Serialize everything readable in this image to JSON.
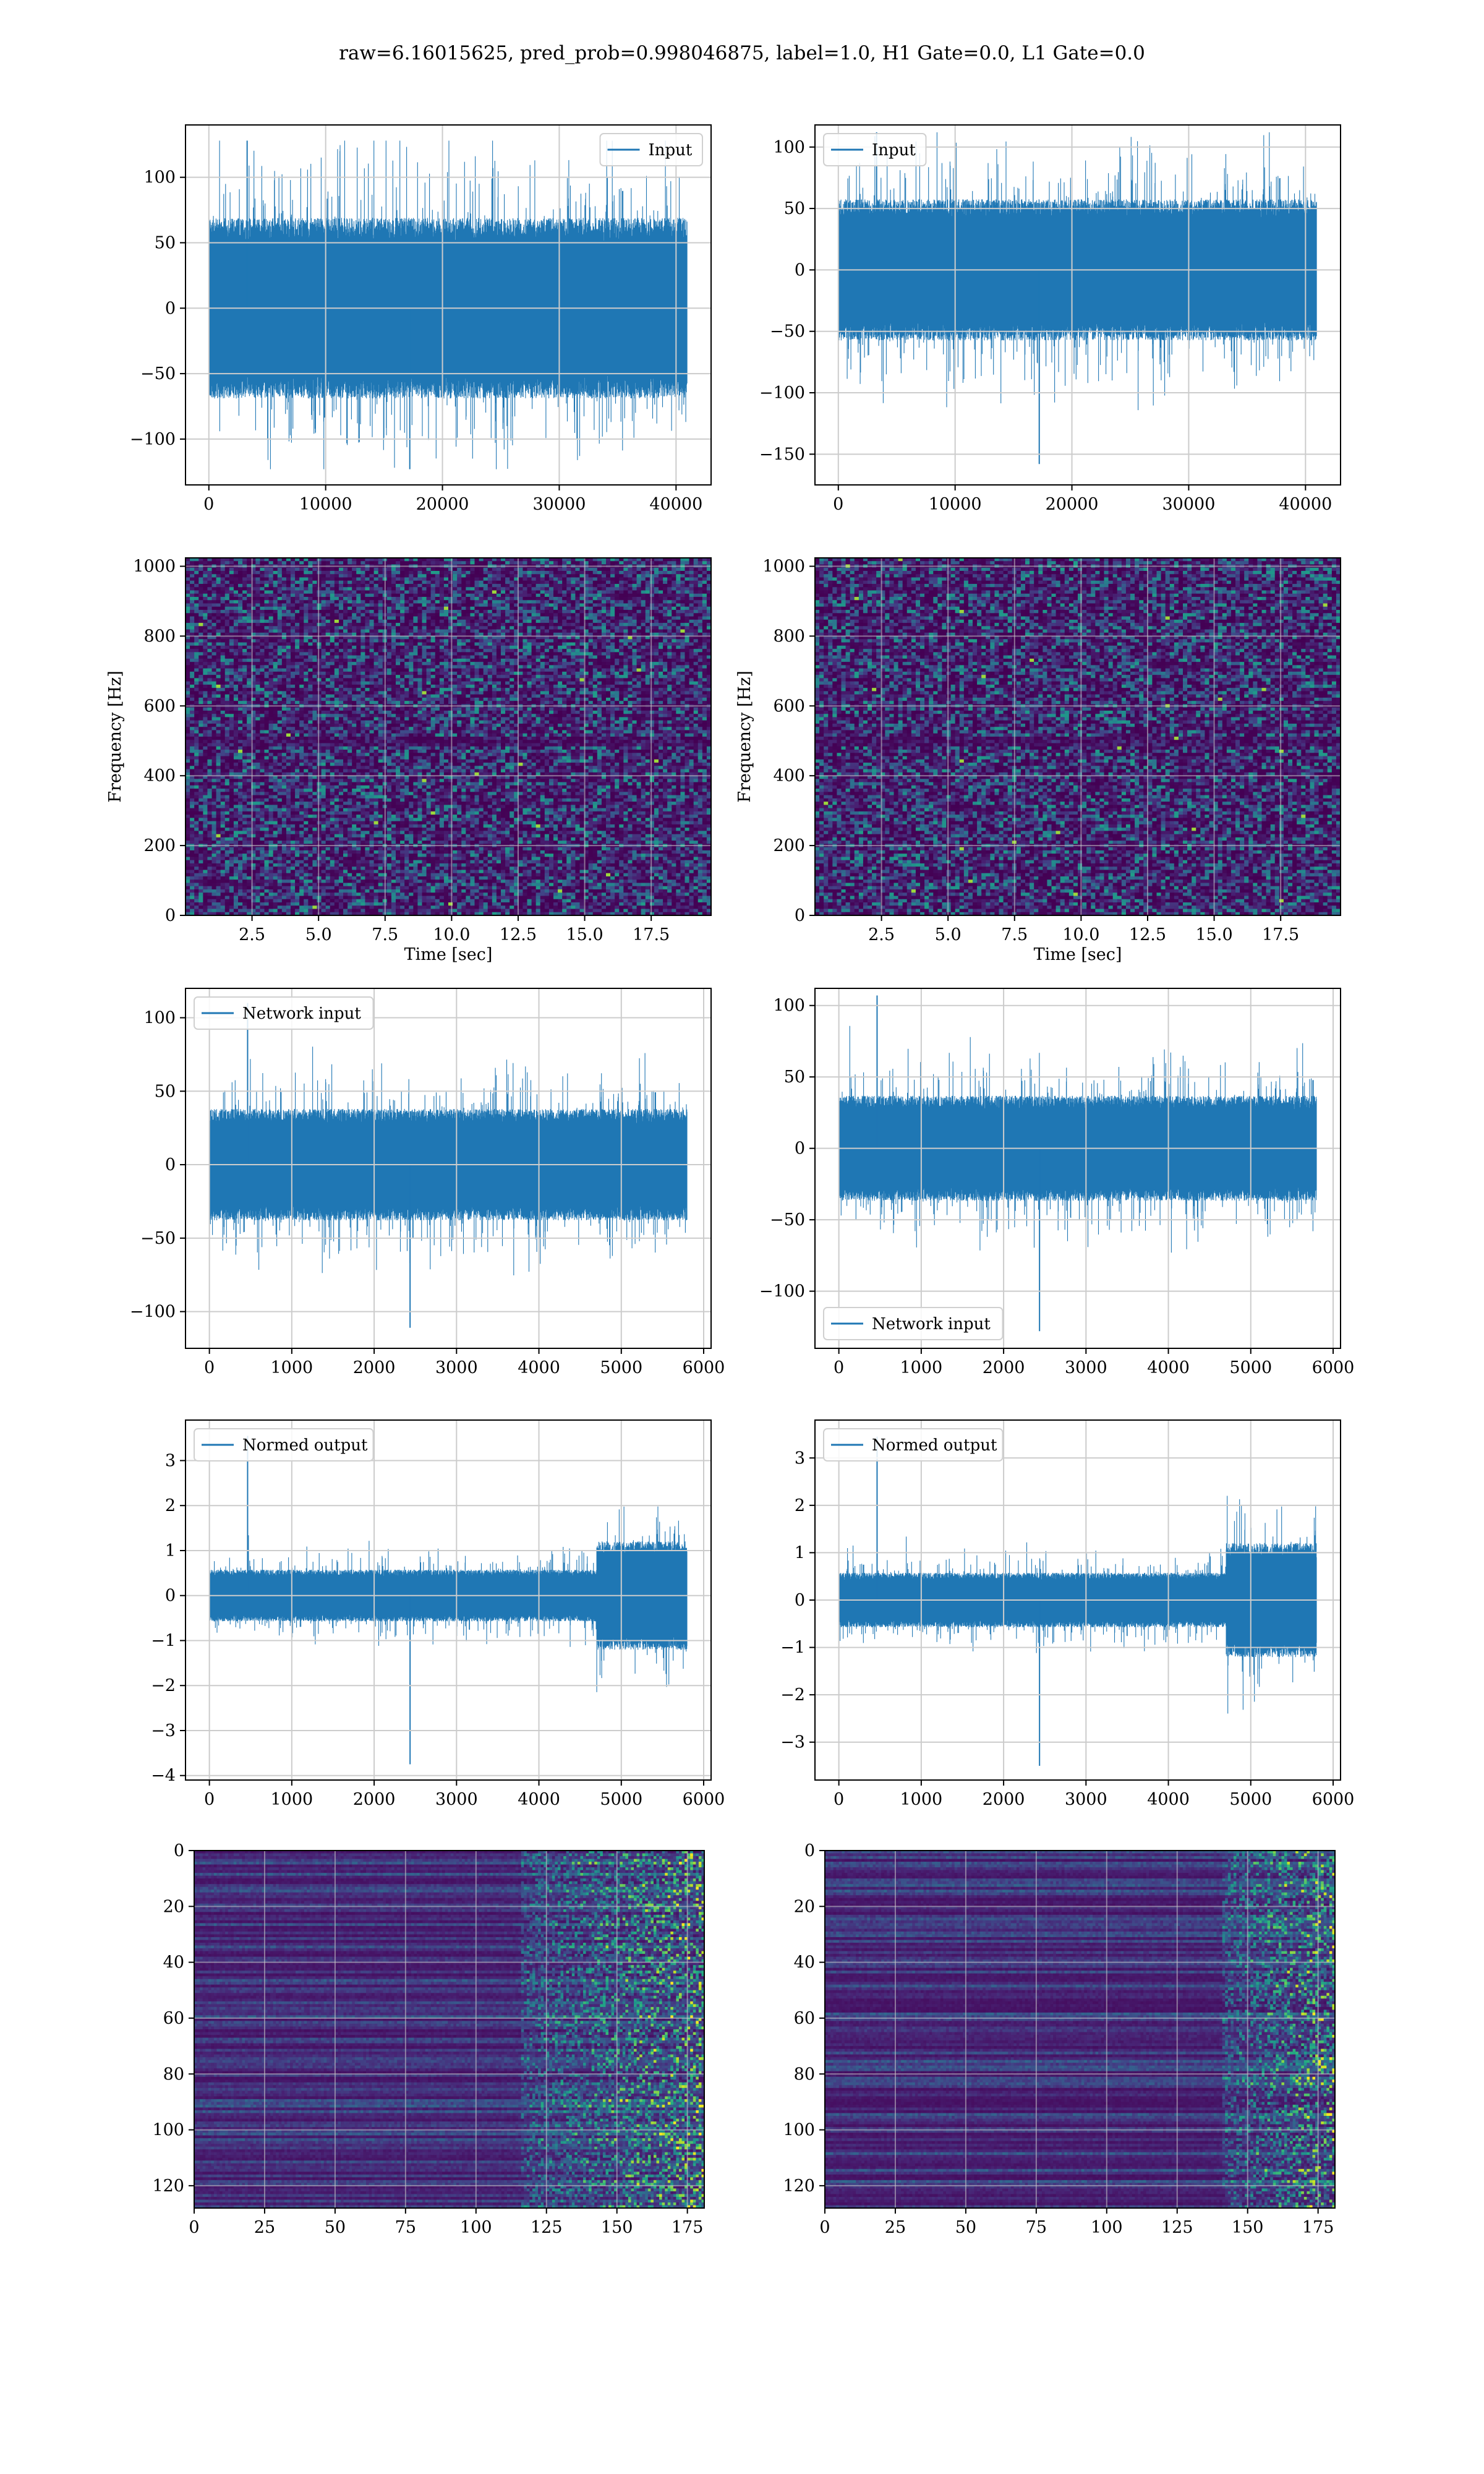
{
  "figure": {
    "title": "raw=6.16015625, pred_prob=0.998046875, label=1.0, H1 Gate=0.0, L1 Gate=0.0",
    "colors": {
      "series": "#1f77b4",
      "grid": "#cccccc",
      "axes": "#000000",
      "viridis": [
        "#440154",
        "#482475",
        "#414487",
        "#355f8d",
        "#2a788e",
        "#21918c",
        "#22a884",
        "#44bf70",
        "#7ad151",
        "#bddf26",
        "#fde725"
      ]
    }
  },
  "chart_data": [
    {
      "id": "input-h1",
      "type": "line",
      "legend": {
        "label": "Input",
        "placement": "upper right"
      },
      "xlim": [
        -2000,
        43000
      ],
      "ylim": [
        -135,
        140
      ],
      "xticks": [
        0,
        10000,
        20000,
        30000,
        40000
      ],
      "xticklabels": [
        "0",
        "10000",
        "20000",
        "30000",
        "40000"
      ],
      "yticks": [
        -100,
        -50,
        0,
        50,
        100
      ],
      "yticklabels": [
        "−100",
        "−50",
        "0",
        "50",
        "100"
      ],
      "grid": true,
      "x_range": [
        0,
        40960
      ],
      "envelope": {
        "core": 60,
        "peak": 128,
        "min": -123
      }
    },
    {
      "id": "input-l1",
      "type": "line",
      "legend": {
        "label": "Input",
        "placement": "upper left"
      },
      "xlim": [
        -2000,
        43000
      ],
      "ylim": [
        -175,
        118
      ],
      "xticks": [
        0,
        10000,
        20000,
        30000,
        40000
      ],
      "xticklabels": [
        "0",
        "10000",
        "20000",
        "30000",
        "40000"
      ],
      "yticks": [
        -150,
        -100,
        -50,
        0,
        50,
        100
      ],
      "yticklabels": [
        "−150",
        "−100",
        "−50",
        "0",
        "50",
        "100"
      ],
      "grid": true,
      "x_range": [
        0,
        40960
      ],
      "envelope": {
        "core": 50,
        "peak": 112,
        "min": -158
      }
    },
    {
      "id": "spectrogram-h1",
      "type": "heatmap",
      "xlabel": "Time [sec]",
      "ylabel": "Frequency [Hz]",
      "xlim": [
        0,
        19.75
      ],
      "ylim": [
        0,
        1024
      ],
      "xticks": [
        2.5,
        5.0,
        7.5,
        10.0,
        12.5,
        15.0,
        17.5
      ],
      "xticklabels": [
        "2.5",
        "5.0",
        "7.5",
        "10.0",
        "12.5",
        "15.0",
        "17.5"
      ],
      "yticks": [
        0,
        200,
        400,
        600,
        800,
        1000
      ],
      "yticklabels": [
        "0",
        "200",
        "400",
        "600",
        "800",
        "1000"
      ],
      "grid": true,
      "colormap": "viridis",
      "dark_band_hz": 500
    },
    {
      "id": "spectrogram-l1",
      "type": "heatmap",
      "xlabel": "Time [sec]",
      "ylabel": "Frequency [Hz]",
      "xlim": [
        0,
        19.75
      ],
      "ylim": [
        0,
        1024
      ],
      "xticks": [
        2.5,
        5.0,
        7.5,
        10.0,
        12.5,
        15.0,
        17.5
      ],
      "xticklabels": [
        "2.5",
        "5.0",
        "7.5",
        "10.0",
        "12.5",
        "15.0",
        "17.5"
      ],
      "yticks": [
        0,
        200,
        400,
        600,
        800,
        1000
      ],
      "yticklabels": [
        "0",
        "200",
        "400",
        "600",
        "800",
        "1000"
      ],
      "grid": true,
      "colormap": "viridis",
      "dark_band_hz": 500
    },
    {
      "id": "network-input-h1",
      "type": "line",
      "legend": {
        "label": "Network input",
        "placement": "upper left"
      },
      "xlim": [
        -290,
        6090
      ],
      "ylim": [
        -125,
        120
      ],
      "xticks": [
        0,
        1000,
        2000,
        3000,
        4000,
        5000,
        6000
      ],
      "xticklabels": [
        "0",
        "1000",
        "2000",
        "3000",
        "4000",
        "5000",
        "6000"
      ],
      "yticks": [
        -100,
        -50,
        0,
        50,
        100
      ],
      "yticklabels": [
        "−100",
        "−50",
        "0",
        "50",
        "100"
      ],
      "grid": true,
      "x_range": [
        0,
        5800
      ],
      "envelope": {
        "core": 33,
        "peak": 110,
        "min": -111
      }
    },
    {
      "id": "network-input-l1",
      "type": "line",
      "legend": {
        "label": "Network input",
        "placement": "lower left"
      },
      "xlim": [
        -290,
        6090
      ],
      "ylim": [
        -140,
        112
      ],
      "xticks": [
        0,
        1000,
        2000,
        3000,
        4000,
        5000,
        6000
      ],
      "xticklabels": [
        "0",
        "1000",
        "2000",
        "3000",
        "4000",
        "5000",
        "6000"
      ],
      "yticks": [
        -100,
        -50,
        0,
        50,
        100
      ],
      "yticklabels": [
        "−100",
        "−50",
        "0",
        "50",
        "100"
      ],
      "grid": true,
      "x_range": [
        0,
        5800
      ],
      "envelope": {
        "core": 32,
        "peak": 107,
        "min": -128
      }
    },
    {
      "id": "normed-output-h1",
      "type": "line",
      "legend": {
        "label": "Normed output",
        "placement": "upper left"
      },
      "xlim": [
        -290,
        6090
      ],
      "ylim": [
        -4.1,
        3.9
      ],
      "xticks": [
        0,
        1000,
        2000,
        3000,
        4000,
        5000,
        6000
      ],
      "xticklabels": [
        "0",
        "1000",
        "2000",
        "3000",
        "4000",
        "5000",
        "6000"
      ],
      "yticks": [
        -4,
        -3,
        -2,
        -1,
        0,
        1,
        2,
        3
      ],
      "yticklabels": [
        "−4",
        "−3",
        "−2",
        "−1",
        "0",
        "1",
        "2",
        "3"
      ],
      "grid": true,
      "x_range": [
        0,
        5800
      ],
      "burst_start": 4700,
      "envelope": {
        "core": 0.5,
        "peak": 3.55,
        "min": -3.75
      }
    },
    {
      "id": "normed-output-l1",
      "type": "line",
      "legend": {
        "label": "Normed output",
        "placement": "upper left"
      },
      "xlim": [
        -290,
        6090
      ],
      "ylim": [
        -3.8,
        3.8
      ],
      "xticks": [
        0,
        1000,
        2000,
        3000,
        4000,
        5000,
        6000
      ],
      "xticklabels": [
        "0",
        "1000",
        "2000",
        "3000",
        "4000",
        "5000",
        "6000"
      ],
      "yticks": [
        -3,
        -2,
        -1,
        0,
        1,
        2,
        3
      ],
      "yticklabels": [
        "−3",
        "−2",
        "−1",
        "0",
        "1",
        "2",
        "3"
      ],
      "grid": true,
      "x_range": [
        0,
        5800
      ],
      "burst_start": 4700,
      "envelope": {
        "core": 0.5,
        "peak": 3.45,
        "min": -3.5
      }
    },
    {
      "id": "feature-map-h1",
      "type": "heatmap",
      "xlim": [
        0,
        181
      ],
      "ylim": [
        128,
        0
      ],
      "xticks": [
        0,
        25,
        50,
        75,
        100,
        125,
        150,
        175
      ],
      "xticklabels": [
        "0",
        "25",
        "50",
        "75",
        "100",
        "125",
        "150",
        "175"
      ],
      "yticks": [
        0,
        20,
        40,
        60,
        80,
        100,
        120
      ],
      "yticklabels": [
        "0",
        "20",
        "40",
        "60",
        "80",
        "100",
        "120"
      ],
      "grid": true,
      "colormap": "viridis",
      "activity_onset": 115
    },
    {
      "id": "feature-map-l1",
      "type": "heatmap",
      "xlim": [
        0,
        181
      ],
      "ylim": [
        128,
        0
      ],
      "xticks": [
        0,
        25,
        50,
        75,
        100,
        125,
        150,
        175
      ],
      "xticklabels": [
        "0",
        "25",
        "50",
        "75",
        "100",
        "125",
        "150",
        "175"
      ],
      "yticks": [
        0,
        20,
        40,
        60,
        80,
        100,
        120
      ],
      "yticklabels": [
        "0",
        "20",
        "40",
        "60",
        "80",
        "100",
        "120"
      ],
      "grid": true,
      "colormap": "viridis",
      "activity_onset": 140
    }
  ]
}
